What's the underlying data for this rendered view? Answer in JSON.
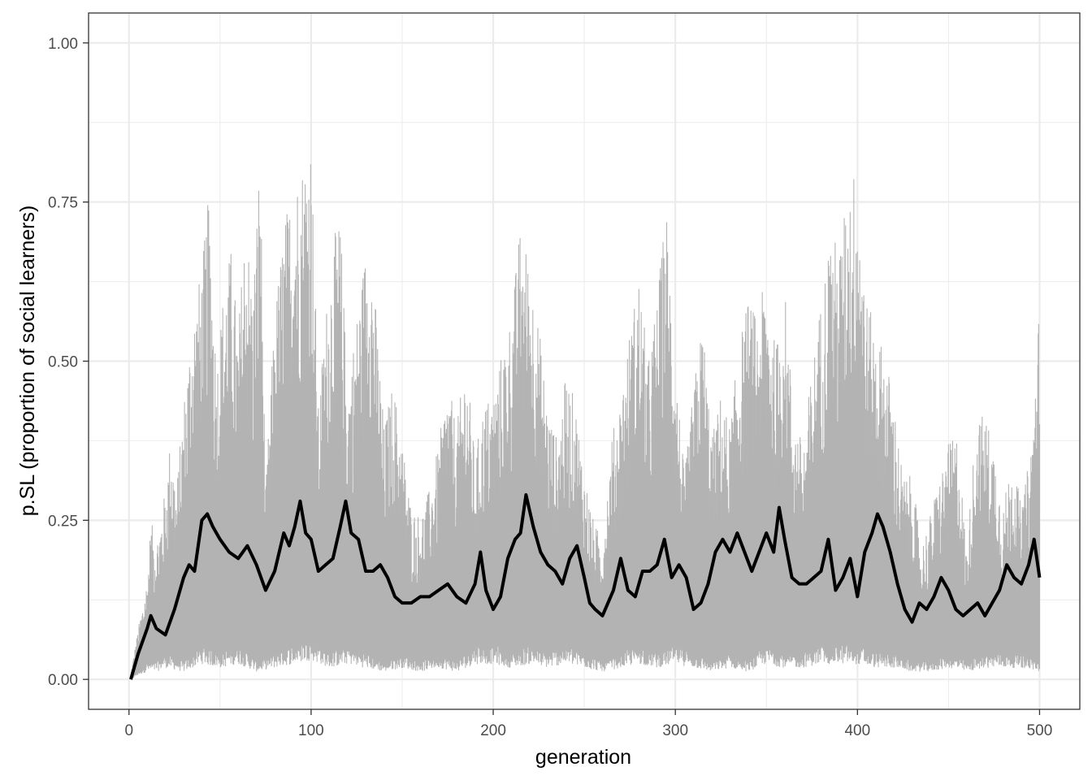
{
  "chart_data": {
    "type": "line",
    "xlabel": "generation",
    "ylabel": "p.SL (proportion of social learners)",
    "xlim": [
      0,
      500
    ],
    "ylim": [
      0,
      1
    ],
    "x_ticks": [
      0,
      100,
      200,
      300,
      400,
      500
    ],
    "y_ticks": [
      0.0,
      0.25,
      0.5,
      0.75,
      1.0
    ],
    "x_tick_labels": [
      "0",
      "100",
      "200",
      "300",
      "400",
      "500"
    ],
    "y_tick_labels": [
      "0.00",
      "0.25",
      "0.50",
      "0.75",
      "1.00"
    ],
    "grid": true,
    "legend": "none",
    "colors": {
      "band": "#b3b3b3",
      "mean": "#000000",
      "grid": "#ebebeb",
      "border": "#333333"
    },
    "series": [
      {
        "role": "mean",
        "x": [
          1,
          5,
          10,
          12,
          15,
          20,
          25,
          30,
          33,
          36,
          40,
          43,
          46,
          50,
          55,
          60,
          65,
          70,
          75,
          80,
          85,
          88,
          91,
          94,
          97,
          100,
          104,
          108,
          112,
          116,
          119,
          122,
          126,
          130,
          134,
          138,
          142,
          146,
          150,
          155,
          160,
          165,
          170,
          175,
          180,
          185,
          190,
          193,
          196,
          200,
          204,
          208,
          212,
          215,
          218,
          222,
          226,
          230,
          234,
          238,
          242,
          246,
          250,
          253,
          256,
          260,
          263,
          266,
          270,
          274,
          278,
          282,
          286,
          290,
          294,
          298,
          302,
          306,
          310,
          314,
          318,
          322,
          326,
          330,
          334,
          338,
          342,
          346,
          350,
          354,
          357,
          360,
          364,
          368,
          372,
          376,
          380,
          384,
          388,
          392,
          396,
          400,
          404,
          408,
          411,
          414,
          418,
          422,
          426,
          430,
          434,
          438,
          442,
          446,
          450,
          454,
          458,
          462,
          466,
          470,
          474,
          478,
          482,
          486,
          490,
          494,
          497,
          500
        ],
        "y": [
          0.0,
          0.04,
          0.08,
          0.1,
          0.08,
          0.07,
          0.11,
          0.16,
          0.18,
          0.17,
          0.25,
          0.26,
          0.24,
          0.22,
          0.2,
          0.19,
          0.21,
          0.18,
          0.14,
          0.17,
          0.23,
          0.21,
          0.24,
          0.28,
          0.23,
          0.22,
          0.17,
          0.18,
          0.19,
          0.24,
          0.28,
          0.23,
          0.22,
          0.17,
          0.17,
          0.18,
          0.16,
          0.13,
          0.12,
          0.12,
          0.13,
          0.13,
          0.14,
          0.15,
          0.13,
          0.12,
          0.15,
          0.2,
          0.14,
          0.11,
          0.13,
          0.19,
          0.22,
          0.23,
          0.29,
          0.24,
          0.2,
          0.18,
          0.17,
          0.15,
          0.19,
          0.21,
          0.16,
          0.12,
          0.11,
          0.1,
          0.12,
          0.14,
          0.19,
          0.14,
          0.13,
          0.17,
          0.17,
          0.18,
          0.22,
          0.16,
          0.18,
          0.16,
          0.11,
          0.12,
          0.15,
          0.2,
          0.22,
          0.2,
          0.23,
          0.2,
          0.17,
          0.2,
          0.23,
          0.2,
          0.27,
          0.22,
          0.16,
          0.15,
          0.15,
          0.16,
          0.17,
          0.22,
          0.14,
          0.16,
          0.19,
          0.13,
          0.2,
          0.23,
          0.26,
          0.24,
          0.2,
          0.15,
          0.11,
          0.09,
          0.12,
          0.11,
          0.13,
          0.16,
          0.14,
          0.11,
          0.1,
          0.11,
          0.12,
          0.1,
          0.12,
          0.14,
          0.18,
          0.16,
          0.15,
          0.18,
          0.22,
          0.16
        ]
      },
      {
        "role": "upper-envelope",
        "x": [
          1,
          5,
          10,
          12,
          15,
          20,
          23,
          26,
          30,
          35,
          40,
          44,
          48,
          52,
          56,
          60,
          64,
          68,
          72,
          75,
          80,
          85,
          90,
          95,
          100,
          104,
          108,
          112,
          116,
          120,
          124,
          128,
          132,
          136,
          140,
          145,
          150,
          155,
          160,
          165,
          170,
          175,
          180,
          185,
          190,
          195,
          200,
          205,
          210,
          215,
          220,
          225,
          230,
          235,
          240,
          245,
          250,
          255,
          260,
          265,
          270,
          275,
          280,
          285,
          290,
          295,
          300,
          305,
          310,
          315,
          320,
          325,
          330,
          335,
          340,
          345,
          350,
          355,
          360,
          365,
          370,
          375,
          380,
          385,
          390,
          395,
          400,
          405,
          410,
          415,
          420,
          425,
          430,
          435,
          440,
          445,
          450,
          455,
          460,
          465,
          470,
          475,
          480,
          485,
          490,
          495,
          500
        ],
        "y": [
          0.01,
          0.08,
          0.16,
          0.25,
          0.22,
          0.3,
          0.39,
          0.3,
          0.44,
          0.58,
          0.65,
          0.77,
          0.5,
          0.62,
          0.68,
          0.55,
          0.74,
          0.61,
          0.85,
          0.3,
          0.58,
          0.72,
          0.78,
          0.82,
          0.87,
          0.43,
          0.58,
          0.69,
          0.73,
          0.46,
          0.55,
          0.64,
          0.72,
          0.57,
          0.4,
          0.47,
          0.38,
          0.27,
          0.26,
          0.3,
          0.37,
          0.47,
          0.4,
          0.51,
          0.35,
          0.44,
          0.45,
          0.52,
          0.58,
          0.72,
          0.66,
          0.56,
          0.43,
          0.38,
          0.48,
          0.44,
          0.33,
          0.25,
          0.22,
          0.38,
          0.45,
          0.55,
          0.64,
          0.5,
          0.6,
          0.75,
          0.51,
          0.32,
          0.46,
          0.57,
          0.38,
          0.45,
          0.4,
          0.53,
          0.6,
          0.57,
          0.64,
          0.52,
          0.62,
          0.42,
          0.37,
          0.49,
          0.6,
          0.71,
          0.68,
          0.78,
          0.82,
          0.6,
          0.55,
          0.52,
          0.44,
          0.32,
          0.32,
          0.21,
          0.26,
          0.32,
          0.37,
          0.39,
          0.2,
          0.41,
          0.42,
          0.37,
          0.27,
          0.36,
          0.27,
          0.36,
          0.6
        ]
      },
      {
        "role": "lower-envelope",
        "x": [
          1,
          5,
          10,
          15,
          20,
          30,
          40,
          50,
          60,
          70,
          80,
          90,
          100,
          110,
          120,
          130,
          140,
          150,
          160,
          170,
          180,
          190,
          200,
          210,
          220,
          230,
          240,
          250,
          260,
          270,
          280,
          290,
          300,
          310,
          320,
          330,
          340,
          350,
          360,
          370,
          380,
          390,
          400,
          410,
          420,
          430,
          440,
          450,
          460,
          470,
          480,
          490,
          500
        ],
        "y": [
          0.0,
          0.01,
          0.02,
          0.02,
          0.03,
          0.02,
          0.04,
          0.03,
          0.04,
          0.02,
          0.03,
          0.04,
          0.05,
          0.03,
          0.04,
          0.03,
          0.02,
          0.03,
          0.02,
          0.03,
          0.02,
          0.04,
          0.04,
          0.03,
          0.04,
          0.03,
          0.04,
          0.03,
          0.02,
          0.03,
          0.04,
          0.03,
          0.04,
          0.03,
          0.02,
          0.03,
          0.02,
          0.04,
          0.03,
          0.03,
          0.04,
          0.04,
          0.04,
          0.03,
          0.03,
          0.02,
          0.02,
          0.03,
          0.02,
          0.03,
          0.03,
          0.03,
          0.02
        ]
      }
    ]
  }
}
